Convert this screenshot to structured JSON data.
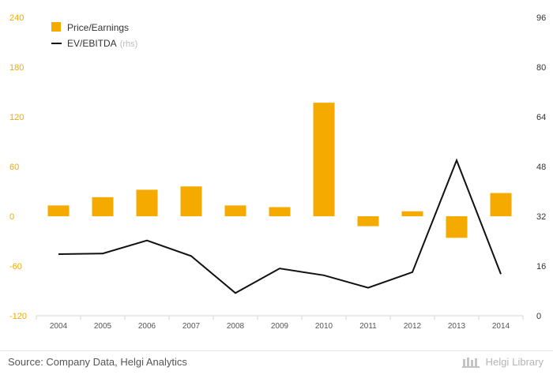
{
  "chart_data": {
    "type": "bar+line",
    "categories": [
      "2004",
      "2005",
      "2006",
      "2007",
      "2008",
      "2009",
      "2010",
      "2011",
      "2012",
      "2013",
      "2014"
    ],
    "series": [
      {
        "name": "Price/Earnings",
        "axis": "left",
        "kind": "bar",
        "color": "#f5aa00",
        "values": [
          13,
          23,
          32,
          36,
          13,
          11,
          137,
          -12,
          6,
          -26,
          28
        ]
      },
      {
        "name": "EV/EBITDA",
        "axis": "right",
        "kind": "line",
        "color": "#111111",
        "values": [
          19.8,
          20.0,
          24.2,
          19.2,
          7.3,
          15.2,
          13.0,
          9.0,
          14.0,
          50.0,
          13.4
        ]
      }
    ],
    "left_axis": {
      "min": -120,
      "max": 240,
      "ticks": [
        "240",
        "180",
        "120",
        "60",
        "0",
        "-60",
        "-120"
      ]
    },
    "right_axis": {
      "min": 0,
      "max": 96,
      "ticks": [
        "96",
        "80",
        "64",
        "48",
        "32",
        "16",
        "0"
      ]
    },
    "legend": {
      "bar_label": "Price/Earnings",
      "line_label": "EV/EBITDA",
      "line_suffix": "(rhs)",
      "position": "top-left"
    }
  },
  "footer": {
    "source": "Source: Company Data, Helgi Analytics",
    "brand_a": "Helgi",
    "brand_b": "Library"
  }
}
